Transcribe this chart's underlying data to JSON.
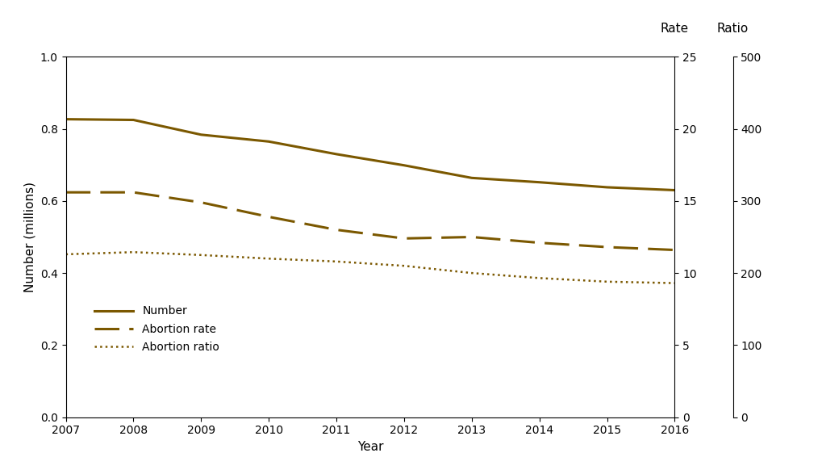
{
  "years_main": [
    2007,
    2008,
    2009,
    2010,
    2011,
    2012,
    2013,
    2014,
    2015,
    2016
  ],
  "number_main": [
    0.827,
    0.825,
    0.784,
    0.765,
    0.73,
    0.699,
    0.664,
    0.652,
    0.638,
    0.63
  ],
  "rate_main": [
    15.6,
    15.6,
    14.9,
    13.9,
    13.0,
    12.4,
    12.5,
    12.1,
    11.8,
    11.6
  ],
  "ratio_main": [
    226,
    229,
    225,
    220,
    216,
    210,
    200,
    193,
    188,
    186
  ],
  "color": "#7B5800",
  "ylim_left": [
    0.0,
    1.0
  ],
  "rate_max": 25,
  "ratio_max": 500,
  "xlabel": "Year",
  "ylabel_left": "Number (millions)",
  "label_rate": "Rate",
  "label_ratio": "Ratio",
  "legend_labels": [
    "Number",
    "Abortion rate",
    "Abortion ratio"
  ],
  "yticks_left": [
    0.0,
    0.2,
    0.4,
    0.6,
    0.8,
    1.0
  ],
  "yticks_rate": [
    0,
    5,
    10,
    15,
    20,
    25
  ],
  "yticks_ratio": [
    0,
    100,
    200,
    300,
    400,
    500
  ],
  "xticks": [
    2007,
    2008,
    2009,
    2010,
    2011,
    2012,
    2013,
    2014,
    2015,
    2016
  ]
}
